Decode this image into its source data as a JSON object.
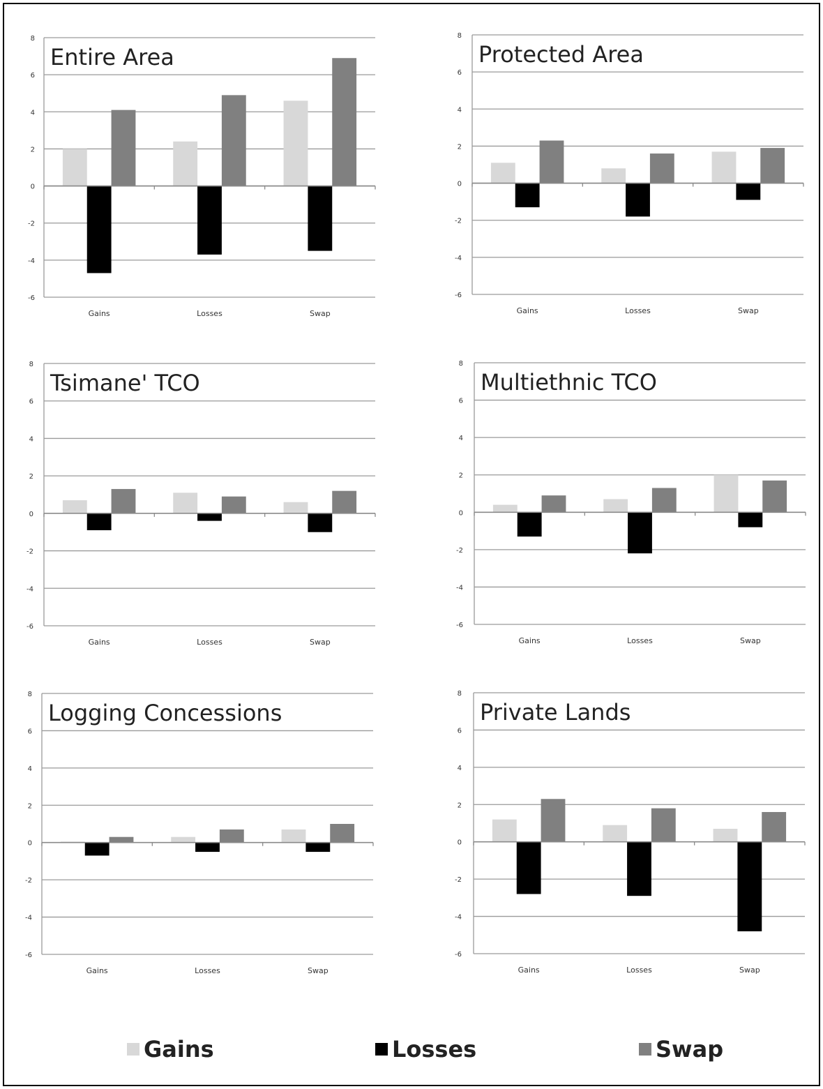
{
  "colors": {
    "gains": "#d8d8d8",
    "losses": "#000000",
    "swap": "#808080",
    "grid": "#9a9a9a",
    "text": "#333333"
  },
  "legend": [
    {
      "name": "Gains",
      "color": "#d8d8d8"
    },
    {
      "name": "Losses",
      "color": "#000000"
    },
    {
      "name": "Swap",
      "color": "#808080"
    }
  ],
  "chart_data": [
    {
      "type": "bar",
      "title": "Entire Area",
      "categories": [
        "Gains",
        "Losses",
        "Swap"
      ],
      "series": [
        {
          "name": "Gains",
          "values": [
            2.0,
            2.4,
            4.6
          ]
        },
        {
          "name": "Losses",
          "values": [
            -4.7,
            -3.7,
            -3.5
          ]
        },
        {
          "name": "Swap",
          "values": [
            4.1,
            4.9,
            6.9
          ]
        }
      ],
      "ylim": [
        -6,
        8
      ],
      "yticks": [
        "8",
        "6",
        "4",
        "2",
        "0",
        "-2",
        "-4",
        "-6"
      ],
      "grid": true
    },
    {
      "type": "bar",
      "title": "Protected Area",
      "categories": [
        "Gains",
        "Losses",
        "Swap"
      ],
      "series": [
        {
          "name": "Gains",
          "values": [
            1.1,
            0.8,
            1.7
          ]
        },
        {
          "name": "Losses",
          "values": [
            -1.3,
            -1.8,
            -0.9
          ]
        },
        {
          "name": "Swap",
          "values": [
            2.3,
            1.6,
            1.9
          ]
        }
      ],
      "ylim": [
        -6,
        8
      ],
      "yticks": [
        "8",
        "6",
        "4",
        "2",
        "0",
        "-2",
        "-4",
        "-6"
      ],
      "grid": true
    },
    {
      "type": "bar",
      "title": "Tsimane' TCO",
      "categories": [
        "Gains",
        "Losses",
        "Swap"
      ],
      "series": [
        {
          "name": "Gains",
          "values": [
            0.7,
            1.1,
            0.6
          ]
        },
        {
          "name": "Losses",
          "values": [
            -0.9,
            -0.4,
            -1.0
          ]
        },
        {
          "name": "Swap",
          "values": [
            1.3,
            0.9,
            1.2
          ]
        }
      ],
      "ylim": [
        -6,
        8
      ],
      "yticks": [
        "8",
        "6",
        "4",
        "2",
        "0",
        "-2",
        "-4",
        "-6"
      ],
      "grid": true
    },
    {
      "type": "bar",
      "title": "Multiethnic TCO",
      "categories": [
        "Gains",
        "Losses",
        "Swap"
      ],
      "series": [
        {
          "name": "Gains",
          "values": [
            0.4,
            0.7,
            2.0
          ]
        },
        {
          "name": "Losses",
          "values": [
            -1.3,
            -2.2,
            -0.8
          ]
        },
        {
          "name": "Swap",
          "values": [
            0.9,
            1.3,
            1.7
          ]
        }
      ],
      "ylim": [
        -6,
        8
      ],
      "yticks": [
        "8",
        "6",
        "4",
        "2",
        "0",
        "-2",
        "-4",
        "-6"
      ],
      "grid": true
    },
    {
      "type": "bar",
      "title": "Logging Concessions",
      "categories": [
        "Gains",
        "Losses",
        "Swap"
      ],
      "series": [
        {
          "name": "Gains",
          "values": [
            0.05,
            0.3,
            0.7
          ]
        },
        {
          "name": "Losses",
          "values": [
            -0.7,
            -0.5,
            -0.5
          ]
        },
        {
          "name": "Swap",
          "values": [
            0.3,
            0.7,
            1.0
          ]
        }
      ],
      "ylim": [
        -6,
        8
      ],
      "yticks": [
        "8",
        "6",
        "4",
        "2",
        "0",
        "-2",
        "-4",
        "-6"
      ],
      "grid": true
    },
    {
      "type": "bar",
      "title": "Private Lands",
      "categories": [
        "Gains",
        "Losses",
        "Swap"
      ],
      "series": [
        {
          "name": "Gains",
          "values": [
            1.2,
            0.9,
            0.7
          ]
        },
        {
          "name": "Losses",
          "values": [
            -2.8,
            -2.9,
            -4.8
          ]
        },
        {
          "name": "Swap",
          "values": [
            2.3,
            1.8,
            1.6
          ]
        }
      ],
      "ylim": [
        -6,
        8
      ],
      "yticks": [
        "8",
        "6",
        "4",
        "2",
        "0",
        "-2",
        "-4",
        "-6"
      ],
      "grid": true
    }
  ]
}
